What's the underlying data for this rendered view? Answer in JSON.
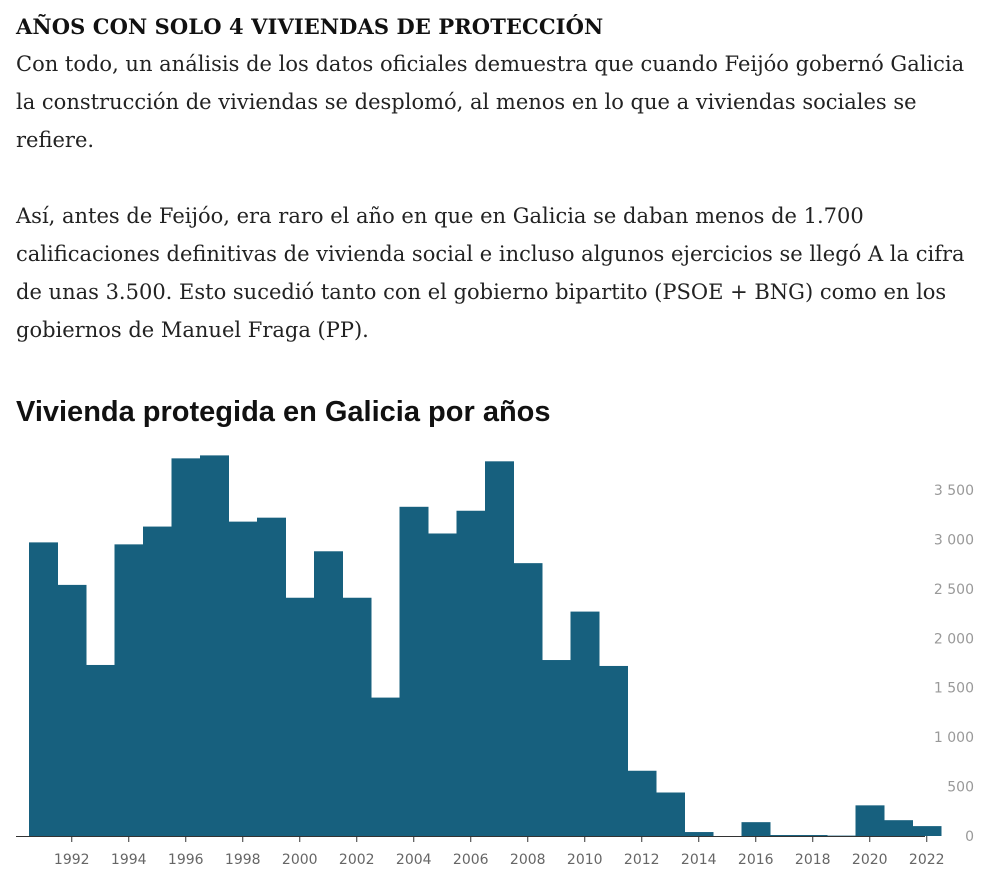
{
  "article": {
    "heading": "AÑOS CON SOLO 4 VIVIENDAS DE PROTECCIÓN",
    "paragraphs": [
      "Con todo, un análisis de los datos oficiales demuestra que cuando Feijóo gobernó Galicia la construcción de viviendas se desplomó, al menos en lo que a viviendas sociales se refiere.",
      "Así, antes de Feijóo, era raro el año en que en Galicia se daban menos de 1.700 calificaciones definitivas de vivienda social e incluso algunos ejercicios se llegó A la cifra de unas 3.500. Esto sucedió tanto con el gobierno bipartito (PSOE + BNG) como en los gobiernos de Manuel Fraga (PP)."
    ]
  },
  "chart_data": {
    "type": "bar",
    "title": "Vivienda protegida en Galicia por años",
    "xlabel": "",
    "ylabel": "",
    "categories": [
      1991,
      1992,
      1993,
      1994,
      1995,
      1996,
      1997,
      1998,
      1999,
      2000,
      2001,
      2002,
      2003,
      2004,
      2005,
      2006,
      2007,
      2008,
      2009,
      2010,
      2011,
      2012,
      2013,
      2014,
      2015,
      2016,
      2017,
      2018,
      2019,
      2020,
      2021,
      2022
    ],
    "values": [
      2970,
      2540,
      1730,
      2950,
      3130,
      3820,
      3850,
      3180,
      3220,
      2410,
      2880,
      2410,
      1400,
      3330,
      3060,
      3290,
      3790,
      2760,
      1780,
      2270,
      1720,
      660,
      440,
      40,
      0,
      140,
      10,
      10,
      4,
      310,
      160,
      100
    ],
    "x_tick_labels": [
      "1992",
      "1994",
      "1996",
      "1998",
      "2000",
      "2002",
      "2004",
      "2006",
      "2008",
      "2010",
      "2012",
      "2014",
      "2016",
      "2018",
      "2020",
      "2022"
    ],
    "y_ticks": [
      0,
      500,
      1000,
      1500,
      2000,
      2500,
      3000,
      3500
    ],
    "y_tick_labels": [
      "0",
      "500",
      "1 000",
      "1 500",
      "2 000",
      "2 500",
      "3 000",
      "3 500"
    ],
    "ylim": [
      0,
      3900
    ],
    "axis_position": "right",
    "grid": false,
    "bar_color": "#17607e"
  }
}
